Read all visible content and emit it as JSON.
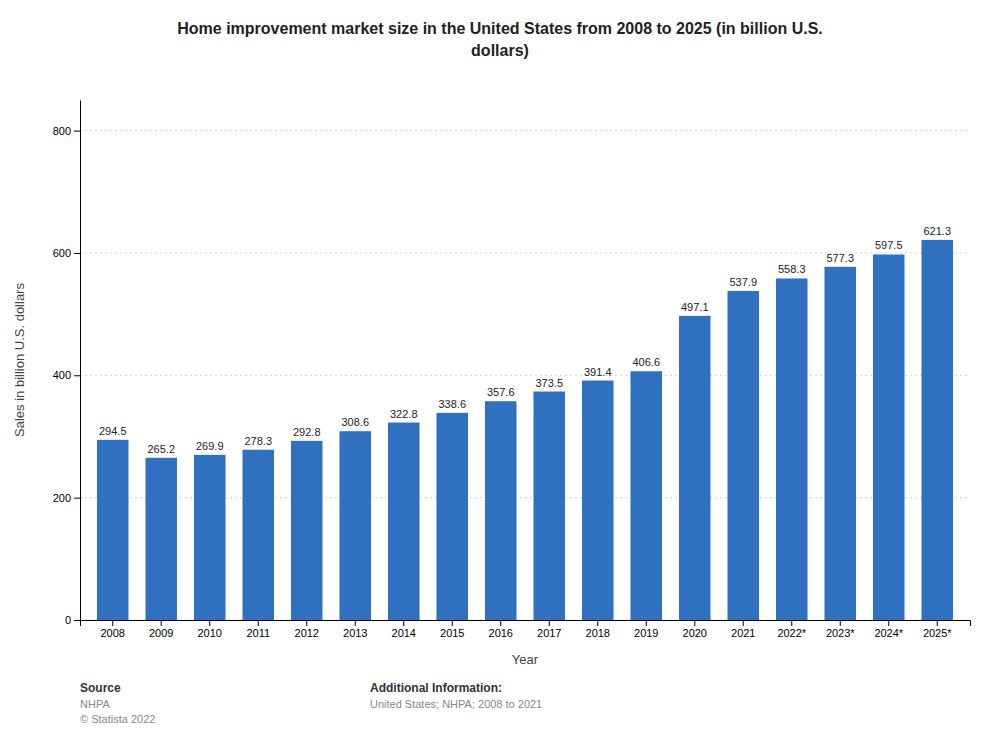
{
  "chart_data": {
    "type": "bar",
    "title": [
      "Home improvement market size in the United States from 2008 to 2025 (in billion U.S.",
      "dollars)"
    ],
    "x_label": "Year",
    "y_label": "Sales in billion U.S. dollars",
    "categories": [
      "2008",
      "2009",
      "2010",
      "2011",
      "2012",
      "2013",
      "2014",
      "2015",
      "2016",
      "2017",
      "2018",
      "2019",
      "2020",
      "2021",
      "2022*",
      "2023*",
      "2024*",
      "2025*"
    ],
    "values": [
      294.5,
      265.2,
      269.9,
      278.3,
      292.8,
      308.6,
      322.8,
      338.6,
      357.6,
      373.5,
      391.4,
      406.6,
      497.1,
      537.9,
      558.3,
      577.3,
      597.5,
      621.3
    ],
    "color": "#3070c0",
    "ylim": [
      0,
      850
    ],
    "yticks": [
      0,
      200,
      400,
      600,
      800
    ],
    "grid": true,
    "data_labels": true,
    "annotations": [
      "Source",
      "NHPA",
      "© Statista 2022",
      "Additional Information:",
      "United States; NHPA; 2008 to 2021"
    ]
  }
}
